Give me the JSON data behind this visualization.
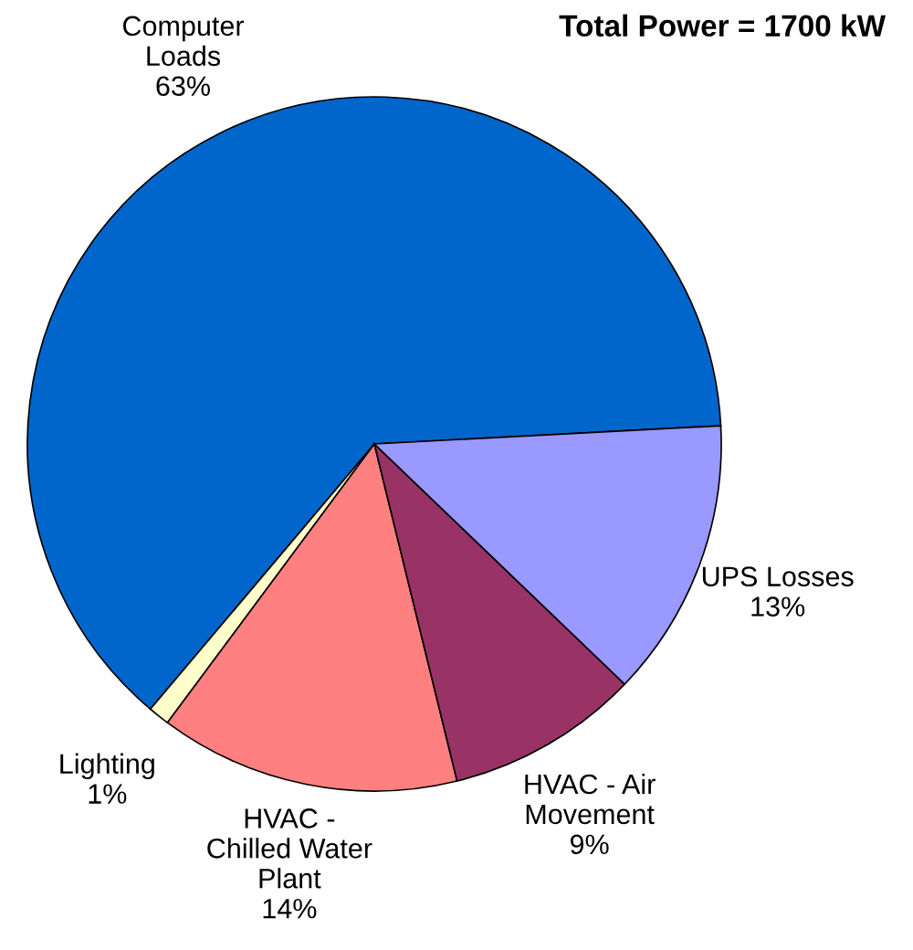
{
  "chart_data": {
    "type": "pie",
    "title": "Total Power = 1700 kW",
    "categories": [
      "Computer\nLoads",
      "Lighting",
      "HVAC -\nChilled Water\nPlant",
      "HVAC - Air\nMovement",
      "UPS Losses"
    ],
    "values": [
      63,
      1,
      14,
      9,
      13
    ],
    "value_labels": [
      "63%",
      "1%",
      "14%",
      "9%",
      "13%"
    ],
    "colors": [
      "#0066cc",
      "#ffffcc",
      "#ff8080",
      "#993366",
      "#9999ff"
    ]
  }
}
